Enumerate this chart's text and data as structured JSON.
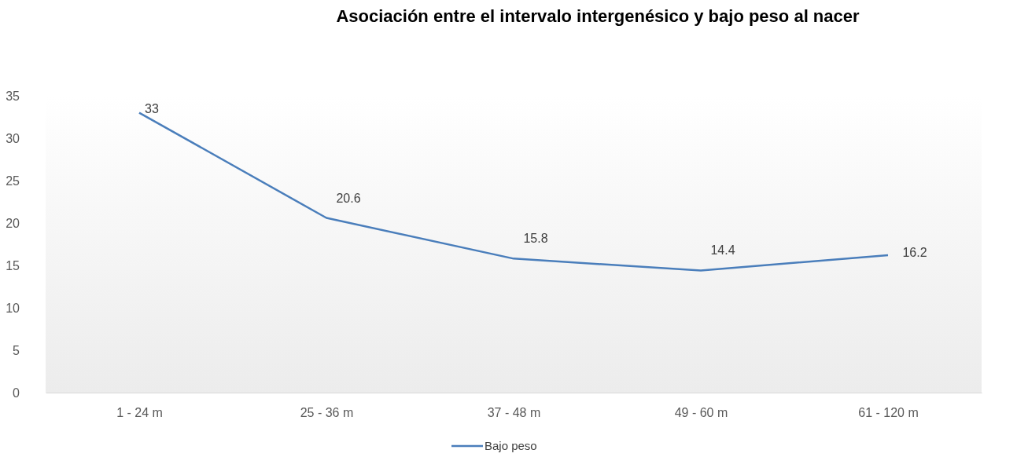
{
  "chart_data": {
    "type": "line",
    "title": "Asociación entre el intervalo intergenésico y bajo peso al nacer",
    "categories": [
      "1 - 24 m",
      "25 - 36 m",
      "37 - 48 m",
      "49 - 60 m",
      "61 - 120 m"
    ],
    "series": [
      {
        "name": "Bajo peso",
        "color": "#4a7ebb",
        "values": [
          33,
          20.6,
          15.8,
          14.4,
          16.2
        ]
      }
    ],
    "ylim": [
      0,
      35
    ],
    "yticks": [
      0,
      5,
      10,
      15,
      20,
      25,
      30,
      35
    ],
    "data_labels": true,
    "legend": "bottom",
    "grid": false,
    "marker": "none",
    "line_style": "solid"
  }
}
